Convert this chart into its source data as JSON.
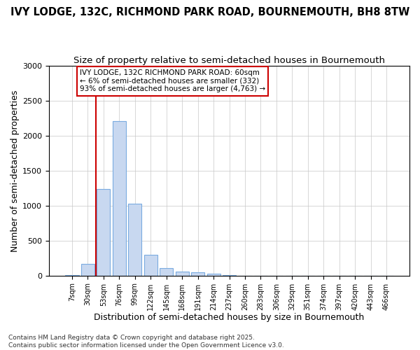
{
  "title_line1": "IVY LODGE, 132C, RICHMOND PARK ROAD, BOURNEMOUTH, BH8 8TW",
  "title_line2": "Size of property relative to semi-detached houses in Bournemouth",
  "xlabel": "Distribution of semi-detached houses by size in Bournemouth",
  "ylabel": "Number of semi-detached properties",
  "footnote": "Contains HM Land Registry data © Crown copyright and database right 2025.\nContains public sector information licensed under the Open Government Licence v3.0.",
  "bin_labels": [
    "7sqm",
    "30sqm",
    "53sqm",
    "76sqm",
    "99sqm",
    "122sqm",
    "145sqm",
    "168sqm",
    "191sqm",
    "214sqm",
    "237sqm",
    "260sqm",
    "283sqm",
    "306sqm",
    "329sqm",
    "351sqm",
    "374sqm",
    "397sqm",
    "420sqm",
    "443sqm",
    "466sqm"
  ],
  "bar_values": [
    10,
    165,
    1235,
    2210,
    1030,
    295,
    105,
    60,
    50,
    30,
    8,
    0,
    0,
    0,
    0,
    0,
    0,
    0,
    0,
    0,
    0
  ],
  "bar_color": "#c8d8f0",
  "bar_edge_color": "#7aabe0",
  "grid_color": "#c8c8c8",
  "bg_color": "#ffffff",
  "vline_color": "#cc0000",
  "vline_x_idx": 2,
  "annotation_text": "IVY LODGE, 132C RICHMOND PARK ROAD: 60sqm\n← 6% of semi-detached houses are smaller (332)\n93% of semi-detached houses are larger (4,763) →",
  "annotation_box_color": "#cc0000",
  "annotation_bg": "#ffffff",
  "ylim": [
    0,
    3000
  ],
  "yticks": [
    0,
    500,
    1000,
    1500,
    2000,
    2500,
    3000
  ],
  "title_fontsize": 10.5,
  "subtitle_fontsize": 9.5,
  "axis_label_fontsize": 9,
  "tick_fontsize": 7,
  "annotation_fontsize": 7.5,
  "footnote_fontsize": 6.5
}
